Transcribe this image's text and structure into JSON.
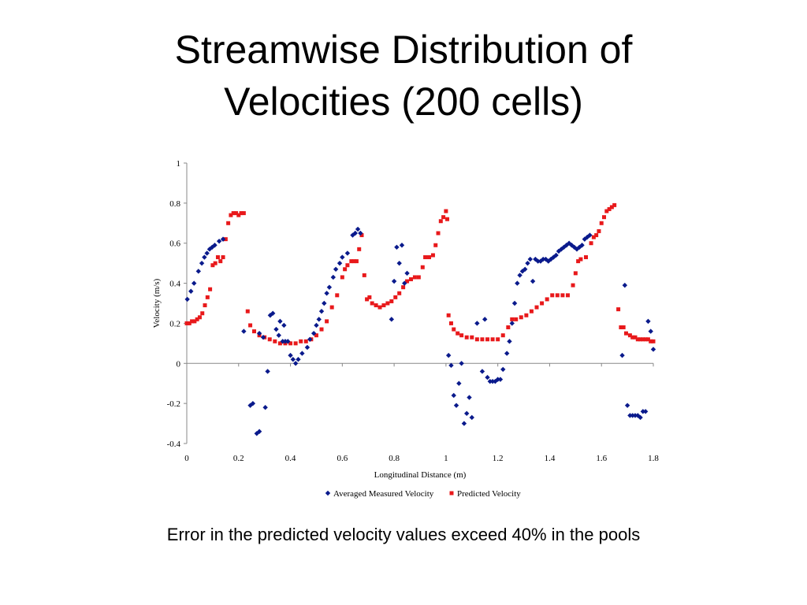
{
  "slide": {
    "title_line1": "Streamwise Distribution of",
    "title_line2": "Velocities (200 cells)",
    "caption": "Error in the predicted velocity values exceed 40% in the pools"
  },
  "chart_data": {
    "type": "scatter",
    "xlabel": "Longitudinal Distance (m)",
    "ylabel": "Velocity (m/s)",
    "xlim": [
      0,
      1.8
    ],
    "ylim": [
      -0.4,
      1
    ],
    "xticks": [
      0,
      0.2,
      0.4,
      0.6,
      0.8,
      1,
      1.2,
      1.4,
      1.6,
      1.8
    ],
    "xtick_labels": [
      "0",
      "0.2",
      "0.4",
      "0.6",
      "0.8",
      "1",
      "1.2",
      "1.4",
      "1.6",
      "1.8"
    ],
    "yticks": [
      -0.4,
      -0.2,
      0,
      0.2,
      0.4,
      0.6,
      0.8,
      1
    ],
    "ytick_labels": [
      "-0.4",
      "-0.2",
      "0",
      "0.2",
      "0.4",
      "0.6",
      "0.8",
      "1"
    ],
    "grid": false,
    "legend_position": "bottom",
    "series": [
      {
        "name": "Averaged Measured Velocity",
        "color": "#0a1a8c",
        "marker": "diamond",
        "points": [
          [
            0.002,
            0.32
          ],
          [
            0.016,
            0.36
          ],
          [
            0.028,
            0.4
          ],
          [
            0.045,
            0.46
          ],
          [
            0.058,
            0.5
          ],
          [
            0.068,
            0.53
          ],
          [
            0.078,
            0.55
          ],
          [
            0.088,
            0.57
          ],
          [
            0.098,
            0.58
          ],
          [
            0.108,
            0.59
          ],
          [
            0.125,
            0.61
          ],
          [
            0.14,
            0.62
          ],
          [
            0.22,
            0.16
          ],
          [
            0.245,
            -0.21
          ],
          [
            0.255,
            -0.2
          ],
          [
            0.27,
            -0.35
          ],
          [
            0.28,
            -0.34
          ],
          [
            0.28,
            0.15
          ],
          [
            0.295,
            0.13
          ],
          [
            0.303,
            -0.22
          ],
          [
            0.312,
            -0.04
          ],
          [
            0.322,
            0.24
          ],
          [
            0.332,
            0.25
          ],
          [
            0.345,
            0.17
          ],
          [
            0.355,
            0.14
          ],
          [
            0.36,
            0.21
          ],
          [
            0.37,
            0.11
          ],
          [
            0.375,
            0.19
          ],
          [
            0.38,
            0.11
          ],
          [
            0.39,
            0.11
          ],
          [
            0.4,
            0.04
          ],
          [
            0.41,
            0.02
          ],
          [
            0.42,
            0.0
          ],
          [
            0.43,
            0.02
          ],
          [
            0.445,
            0.05
          ],
          [
            0.465,
            0.08
          ],
          [
            0.475,
            0.12
          ],
          [
            0.49,
            0.15
          ],
          [
            0.5,
            0.19
          ],
          [
            0.51,
            0.22
          ],
          [
            0.52,
            0.26
          ],
          [
            0.53,
            0.3
          ],
          [
            0.54,
            0.35
          ],
          [
            0.55,
            0.38
          ],
          [
            0.565,
            0.43
          ],
          [
            0.575,
            0.47
          ],
          [
            0.59,
            0.5
          ],
          [
            0.6,
            0.53
          ],
          [
            0.62,
            0.55
          ],
          [
            0.64,
            0.64
          ],
          [
            0.65,
            0.65
          ],
          [
            0.66,
            0.67
          ],
          [
            0.67,
            0.65
          ],
          [
            0.79,
            0.22
          ],
          [
            0.8,
            0.41
          ],
          [
            0.81,
            0.58
          ],
          [
            0.82,
            0.5
          ],
          [
            0.83,
            0.59
          ],
          [
            0.84,
            0.4
          ],
          [
            0.85,
            0.45
          ],
          [
            1.01,
            0.04
          ],
          [
            1.02,
            -0.01
          ],
          [
            1.03,
            -0.16
          ],
          [
            1.04,
            -0.21
          ],
          [
            1.05,
            -0.1
          ],
          [
            1.06,
            0.0
          ],
          [
            1.07,
            -0.3
          ],
          [
            1.08,
            -0.25
          ],
          [
            1.09,
            -0.17
          ],
          [
            1.1,
            -0.27
          ],
          [
            1.12,
            0.2
          ],
          [
            1.14,
            -0.04
          ],
          [
            1.15,
            0.22
          ],
          [
            1.16,
            -0.07
          ],
          [
            1.17,
            -0.09
          ],
          [
            1.18,
            -0.09
          ],
          [
            1.19,
            -0.09
          ],
          [
            1.2,
            -0.08
          ],
          [
            1.21,
            -0.08
          ],
          [
            1.22,
            -0.03
          ],
          [
            1.235,
            0.05
          ],
          [
            1.245,
            0.11
          ],
          [
            1.255,
            0.2
          ],
          [
            1.265,
            0.3
          ],
          [
            1.275,
            0.4
          ],
          [
            1.285,
            0.44
          ],
          [
            1.295,
            0.46
          ],
          [
            1.305,
            0.47
          ],
          [
            1.315,
            0.5
          ],
          [
            1.325,
            0.52
          ],
          [
            1.335,
            0.41
          ],
          [
            1.345,
            0.52
          ],
          [
            1.355,
            0.51
          ],
          [
            1.365,
            0.51
          ],
          [
            1.375,
            0.52
          ],
          [
            1.385,
            0.52
          ],
          [
            1.395,
            0.51
          ],
          [
            1.405,
            0.52
          ],
          [
            1.415,
            0.53
          ],
          [
            1.425,
            0.54
          ],
          [
            1.435,
            0.56
          ],
          [
            1.445,
            0.57
          ],
          [
            1.455,
            0.58
          ],
          [
            1.465,
            0.59
          ],
          [
            1.475,
            0.6
          ],
          [
            1.485,
            0.59
          ],
          [
            1.495,
            0.58
          ],
          [
            1.505,
            0.57
          ],
          [
            1.515,
            0.58
          ],
          [
            1.525,
            0.59
          ],
          [
            1.535,
            0.62
          ],
          [
            1.545,
            0.63
          ],
          [
            1.555,
            0.64
          ],
          [
            1.68,
            0.04
          ],
          [
            1.69,
            0.39
          ],
          [
            1.7,
            -0.21
          ],
          [
            1.71,
            -0.26
          ],
          [
            1.72,
            -0.26
          ],
          [
            1.73,
            -0.26
          ],
          [
            1.74,
            -0.26
          ],
          [
            1.75,
            -0.27
          ],
          [
            1.76,
            -0.24
          ],
          [
            1.77,
            -0.24
          ],
          [
            1.78,
            0.21
          ],
          [
            1.79,
            0.16
          ],
          [
            1.8,
            0.07
          ]
        ]
      },
      {
        "name": "Predicted Velocity",
        "color": "#e8191b",
        "marker": "square",
        "points": [
          [
            0.0,
            0.2
          ],
          [
            0.01,
            0.2
          ],
          [
            0.02,
            0.21
          ],
          [
            0.03,
            0.21
          ],
          [
            0.04,
            0.22
          ],
          [
            0.05,
            0.23
          ],
          [
            0.06,
            0.25
          ],
          [
            0.07,
            0.29
          ],
          [
            0.08,
            0.33
          ],
          [
            0.09,
            0.37
          ],
          [
            0.1,
            0.49
          ],
          [
            0.11,
            0.5
          ],
          [
            0.12,
            0.53
          ],
          [
            0.13,
            0.51
          ],
          [
            0.14,
            0.53
          ],
          [
            0.15,
            0.62
          ],
          [
            0.16,
            0.7
          ],
          [
            0.17,
            0.74
          ],
          [
            0.18,
            0.75
          ],
          [
            0.19,
            0.75
          ],
          [
            0.2,
            0.74
          ],
          [
            0.21,
            0.75
          ],
          [
            0.22,
            0.75
          ],
          [
            0.235,
            0.26
          ],
          [
            0.245,
            0.19
          ],
          [
            0.26,
            0.16
          ],
          [
            0.28,
            0.14
          ],
          [
            0.3,
            0.13
          ],
          [
            0.32,
            0.12
          ],
          [
            0.34,
            0.11
          ],
          [
            0.36,
            0.1
          ],
          [
            0.38,
            0.1
          ],
          [
            0.4,
            0.1
          ],
          [
            0.42,
            0.1
          ],
          [
            0.44,
            0.11
          ],
          [
            0.46,
            0.11
          ],
          [
            0.48,
            0.12
          ],
          [
            0.5,
            0.14
          ],
          [
            0.52,
            0.17
          ],
          [
            0.54,
            0.21
          ],
          [
            0.56,
            0.28
          ],
          [
            0.58,
            0.34
          ],
          [
            0.6,
            0.43
          ],
          [
            0.61,
            0.47
          ],
          [
            0.62,
            0.49
          ],
          [
            0.635,
            0.51
          ],
          [
            0.645,
            0.51
          ],
          [
            0.655,
            0.51
          ],
          [
            0.665,
            0.57
          ],
          [
            0.675,
            0.64
          ],
          [
            0.685,
            0.44
          ],
          [
            0.695,
            0.32
          ],
          [
            0.705,
            0.33
          ],
          [
            0.715,
            0.3
          ],
          [
            0.73,
            0.29
          ],
          [
            0.745,
            0.28
          ],
          [
            0.76,
            0.29
          ],
          [
            0.775,
            0.3
          ],
          [
            0.79,
            0.31
          ],
          [
            0.805,
            0.33
          ],
          [
            0.82,
            0.35
          ],
          [
            0.835,
            0.38
          ],
          [
            0.85,
            0.41
          ],
          [
            0.865,
            0.42
          ],
          [
            0.88,
            0.43
          ],
          [
            0.895,
            0.43
          ],
          [
            0.91,
            0.48
          ],
          [
            0.92,
            0.53
          ],
          [
            0.935,
            0.53
          ],
          [
            0.95,
            0.54
          ],
          [
            0.96,
            0.59
          ],
          [
            0.97,
            0.65
          ],
          [
            0.98,
            0.71
          ],
          [
            0.99,
            0.73
          ],
          [
            1.0,
            0.76
          ],
          [
            1.005,
            0.72
          ],
          [
            1.01,
            0.24
          ],
          [
            1.02,
            0.2
          ],
          [
            1.03,
            0.17
          ],
          [
            1.045,
            0.15
          ],
          [
            1.06,
            0.14
          ],
          [
            1.08,
            0.13
          ],
          [
            1.1,
            0.13
          ],
          [
            1.12,
            0.12
          ],
          [
            1.14,
            0.12
          ],
          [
            1.16,
            0.12
          ],
          [
            1.18,
            0.12
          ],
          [
            1.2,
            0.12
          ],
          [
            1.22,
            0.14
          ],
          [
            1.24,
            0.18
          ],
          [
            1.255,
            0.22
          ],
          [
            1.27,
            0.22
          ],
          [
            1.29,
            0.23
          ],
          [
            1.31,
            0.24
          ],
          [
            1.33,
            0.26
          ],
          [
            1.35,
            0.28
          ],
          [
            1.37,
            0.3
          ],
          [
            1.39,
            0.32
          ],
          [
            1.41,
            0.34
          ],
          [
            1.43,
            0.34
          ],
          [
            1.45,
            0.34
          ],
          [
            1.47,
            0.34
          ],
          [
            1.49,
            0.39
          ],
          [
            1.5,
            0.45
          ],
          [
            1.51,
            0.51
          ],
          [
            1.52,
            0.52
          ],
          [
            1.54,
            0.53
          ],
          [
            1.56,
            0.6
          ],
          [
            1.57,
            0.63
          ],
          [
            1.58,
            0.64
          ],
          [
            1.59,
            0.66
          ],
          [
            1.6,
            0.7
          ],
          [
            1.61,
            0.73
          ],
          [
            1.62,
            0.76
          ],
          [
            1.63,
            0.77
          ],
          [
            1.64,
            0.78
          ],
          [
            1.65,
            0.79
          ],
          [
            1.665,
            0.27
          ],
          [
            1.675,
            0.18
          ],
          [
            1.685,
            0.18
          ],
          [
            1.695,
            0.15
          ],
          [
            1.71,
            0.14
          ],
          [
            1.72,
            0.13
          ],
          [
            1.73,
            0.13
          ],
          [
            1.74,
            0.12
          ],
          [
            1.75,
            0.12
          ],
          [
            1.76,
            0.12
          ],
          [
            1.77,
            0.12
          ],
          [
            1.78,
            0.12
          ],
          [
            1.79,
            0.11
          ],
          [
            1.8,
            0.11
          ]
        ]
      }
    ]
  }
}
